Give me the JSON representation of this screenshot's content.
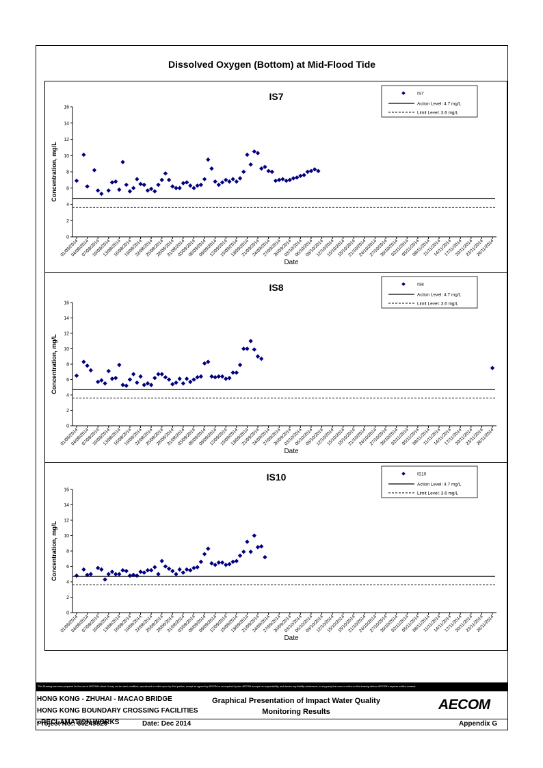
{
  "page_title": "Dissolved Oxygen (Bottom) at Mid-Flood Tide",
  "disclaimer": "This Drawing has been prepared for the use of AECOM's client. It may not be used, modified, reproduced or relied upon by third parties, except as agreed by AECOM or as required by law. AECOM accepts no responsibility, and denies any liability whatsoever, to any party that uses or relies on this drawing without AECOM's express written consent.",
  "footer": {
    "line1": "HONG KONG - ZHUHAI - MACAO BRIDGE",
    "line2": "HONG KONG BOUNDARY CROSSING FACILITIES",
    "line3": "- RECLAMATION WORKS",
    "title1": "Graphical Presentation of Impact Water Quality",
    "title2": "Monitoring Results",
    "project": "Project No.: 60249820",
    "date": "Date: Dec 2014",
    "appendix": "Appendix G",
    "logo": "AECOM"
  },
  "chart_data": [
    {
      "type": "scatter",
      "title": "IS7",
      "xlabel": "Date",
      "ylabel": "Concentration, mg/L",
      "ylim": [
        0,
        16
      ],
      "yticks": [
        0,
        2,
        4,
        6,
        8,
        10,
        12,
        14,
        16
      ],
      "tick_labels": [
        "01/08/2014",
        "04/08/2014",
        "07/08/2014",
        "10/08/2014",
        "13/08/2014",
        "16/08/2014",
        "19/08/2014",
        "22/08/2014",
        "25/08/2014",
        "28/08/2014",
        "31/08/2014",
        "03/09/2014",
        "06/09/2014",
        "09/09/2014",
        "12/09/2014",
        "15/09/2014",
        "18/09/2014",
        "21/09/2014",
        "24/09/2014",
        "27/09/2014",
        "30/09/2014",
        "03/10/2014",
        "06/10/2014",
        "09/10/2014",
        "12/10/2014",
        "15/10/2014",
        "18/10/2014",
        "21/10/2014",
        "24/10/2014",
        "27/10/2014",
        "30/10/2014",
        "02/11/2014",
        "05/11/2014",
        "08/11/2014",
        "11/11/2014",
        "14/11/2014",
        "17/11/2014",
        "20/11/2014",
        "23/11/2014",
        "26/11/2014"
      ],
      "legend": {
        "position": "top-right",
        "series": "IS7",
        "action": "Action Level: 4.7 mg/L",
        "limit": "Limit Level: 3.6 mg/L"
      },
      "action_level": 4.7,
      "limit_level": 3.6,
      "colors": {
        "series": "#000080",
        "action": "#000000",
        "limit": "#000000"
      },
      "x": [
        0,
        2,
        3,
        5,
        6,
        7,
        9,
        10,
        11,
        12,
        13,
        14,
        15,
        16,
        17,
        18,
        19,
        20,
        21,
        22,
        23,
        24,
        25,
        26,
        27,
        28,
        29,
        30,
        31,
        32,
        33,
        34,
        35,
        36,
        37,
        38,
        39,
        40,
        41,
        42,
        43,
        44,
        45,
        46,
        47,
        48,
        49,
        50,
        51,
        52,
        53,
        54,
        55,
        56,
        57,
        58,
        59,
        60,
        61,
        62,
        63,
        64,
        65,
        66,
        67,
        68
      ],
      "y": [
        6.9,
        10.1,
        6.2,
        8.2,
        5.7,
        5.3,
        5.7,
        6.7,
        6.8,
        5.8,
        9.2,
        6.4,
        5.6,
        6.0,
        7.1,
        6.5,
        6.4,
        5.7,
        5.9,
        5.6,
        6.4,
        7.0,
        7.8,
        7.0,
        6.2,
        6.0,
        6.0,
        6.6,
        6.7,
        6.3,
        6.0,
        6.3,
        6.4,
        7.1,
        9.5,
        8.4,
        6.8,
        6.4,
        6.7,
        7.0,
        6.8,
        7.1,
        6.8,
        7.2,
        8.0,
        10.1,
        8.9,
        10.5,
        10.3,
        8.4,
        8.6,
        8.1,
        8.0,
        6.9,
        7.0,
        7.1,
        6.9,
        7.0,
        7.2,
        7.3,
        7.5,
        7.6,
        8.0,
        8.1,
        8.3,
        8.1
      ]
    },
    {
      "type": "scatter",
      "title": "IS8",
      "xlabel": "Date",
      "ylabel": "Concentration, mg/L",
      "ylim": [
        0,
        16
      ],
      "yticks": [
        0,
        2,
        4,
        6,
        8,
        10,
        12,
        14,
        16
      ],
      "tick_labels": [
        "01/08/2014",
        "04/08/2014",
        "07/08/2014",
        "10/08/2014",
        "13/08/2014",
        "16/08/2014",
        "19/08/2014",
        "22/08/2014",
        "25/08/2014",
        "28/08/2014",
        "31/08/2014",
        "03/09/2014",
        "06/09/2014",
        "09/09/2014",
        "12/09/2014",
        "15/09/2014",
        "18/09/2014",
        "21/09/2014",
        "24/09/2014",
        "27/09/2014",
        "30/09/2014",
        "03/10/2014",
        "06/10/2014",
        "09/10/2014",
        "12/10/2014",
        "15/10/2014",
        "18/10/2014",
        "21/10/2014",
        "24/10/2014",
        "27/10/2014",
        "30/10/2014",
        "02/11/2014",
        "05/11/2014",
        "08/11/2014",
        "11/11/2014",
        "14/11/2014",
        "17/11/2014",
        "20/11/2014",
        "23/11/2014",
        "26/11/2014"
      ],
      "legend": {
        "position": "top-right",
        "series": "IS8",
        "action": "Action Level: 4.7 mg/L",
        "limit": "Limit Level: 3.6 mg/L"
      },
      "action_level": 4.7,
      "limit_level": 3.6,
      "colors": {
        "series": "#000080",
        "action": "#000000",
        "limit": "#000000"
      },
      "x": [
        0,
        2,
        3,
        4,
        6,
        7,
        8,
        9,
        10,
        11,
        12,
        13,
        14,
        15,
        16,
        17,
        18,
        19,
        20,
        21,
        22,
        23,
        24,
        25,
        26,
        27,
        28,
        29,
        30,
        31,
        32,
        33,
        34,
        35,
        36,
        37,
        38,
        39,
        40,
        41,
        42,
        43,
        44,
        45,
        46,
        47,
        48,
        49,
        50,
        51,
        52
      ],
      "y": [
        6.5,
        8.3,
        7.8,
        7.2,
        5.7,
        5.9,
        5.5,
        7.1,
        6.1,
        6.2,
        7.9,
        5.3,
        5.2,
        6.0,
        6.7,
        5.6,
        6.4,
        5.3,
        5.5,
        5.3,
        6.2,
        6.7,
        6.7,
        6.3,
        6.0,
        5.4,
        5.6,
        6.1,
        5.5,
        6.1,
        5.7,
        6.0,
        6.3,
        6.4,
        8.1,
        8.3,
        6.4,
        6.3,
        6.4,
        6.4,
        6.1,
        6.2,
        6.9,
        6.9,
        7.9,
        10.0,
        10.0,
        11.0,
        9.9,
        9.0,
        8.7
      ],
      "extra": [
        7.5
      ]
    },
    {
      "type": "scatter",
      "title": "IS10",
      "xlabel": "Date",
      "ylabel": "Concentration, mg/L",
      "ylim": [
        0,
        16
      ],
      "yticks": [
        0,
        2,
        4,
        6,
        8,
        10,
        12,
        14,
        16
      ],
      "tick_labels": [
        "01/08/2014",
        "04/08/2014",
        "07/08/2014",
        "10/08/2014",
        "13/08/2014",
        "16/08/2014",
        "19/08/2014",
        "22/08/2014",
        "25/08/2014",
        "28/08/2014",
        "31/08/2014",
        "03/09/2014",
        "06/09/2014",
        "09/09/2014",
        "12/09/2014",
        "15/09/2014",
        "18/09/2014",
        "21/09/2014",
        "24/09/2014",
        "27/09/2014",
        "30/09/2014",
        "03/10/2014",
        "06/10/2014",
        "09/10/2014",
        "12/10/2014",
        "15/10/2014",
        "18/10/2014",
        "21/10/2014",
        "24/10/2014",
        "27/10/2014",
        "30/10/2014",
        "02/11/2014",
        "05/11/2014",
        "08/11/2014",
        "11/11/2014",
        "14/11/2014",
        "17/11/2014",
        "20/11/2014",
        "23/11/2014",
        "26/11/2014"
      ],
      "legend": {
        "position": "top-right",
        "series": "IS10",
        "action": "Action Level: 4.7 mg/L",
        "limit": "Limit Level: 3.6 mg/L"
      },
      "action_level": 4.7,
      "limit_level": 3.6,
      "colors": {
        "series": "#000080",
        "action": "#000000",
        "limit": "#000000"
      },
      "x": [
        0,
        2,
        3,
        4,
        6,
        7,
        8,
        9,
        10,
        11,
        12,
        13,
        14,
        15,
        16,
        17,
        18,
        19,
        20,
        21,
        22,
        23,
        24,
        25,
        26,
        27,
        28,
        29,
        30,
        31,
        32,
        33,
        34,
        35,
        36,
        37,
        38,
        39,
        40,
        41,
        42,
        43,
        44,
        45,
        46,
        47,
        48,
        49,
        50,
        51,
        52,
        53
      ],
      "y": [
        4.8,
        5.6,
        4.9,
        5.0,
        5.8,
        5.6,
        4.3,
        5.0,
        5.3,
        5.0,
        5.0,
        5.5,
        5.4,
        4.8,
        4.9,
        4.8,
        5.3,
        5.2,
        5.5,
        5.5,
        5.9,
        5.0,
        6.7,
        6.0,
        5.7,
        5.4,
        5.0,
        5.6,
        5.2,
        5.6,
        5.5,
        5.8,
        5.9,
        6.6,
        7.6,
        8.3,
        6.4,
        6.2,
        6.5,
        6.5,
        6.2,
        6.3,
        6.6,
        6.7,
        7.4,
        7.9,
        9.2,
        7.9,
        10.0,
        8.5,
        8.6,
        7.2
      ]
    }
  ]
}
